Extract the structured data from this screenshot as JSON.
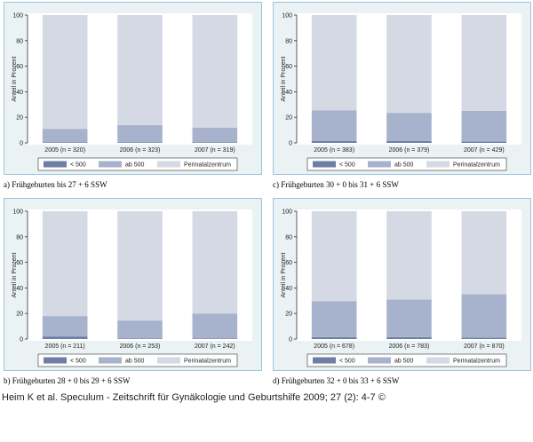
{
  "legend_labels": [
    "< 500",
    "ab 500",
    "Perinatalzentrum"
  ],
  "colors": {
    "lt500": "#6f7ea4",
    "ab500": "#a7b2cc",
    "perinatal": "#d5d9e4"
  },
  "source_text": "Heim K et al. Speculum - Zeitschrift für Gynäkologie und Geburtshilfe 2009; 27 (2): 4-7 ©",
  "chart_data": [
    {
      "type": "bar",
      "stacked": true,
      "caption": "a) Frühgeburten bis 27 + 6 SSW",
      "ylabel": "Anteil in Prozent",
      "ylim": [
        0,
        100
      ],
      "yticks": [
        "0",
        "20",
        "40",
        "60",
        "80",
        "100"
      ],
      "categories": [
        "2005 (n = 320)",
        "2006 (n = 323)",
        "2007 (n = 319)"
      ],
      "series": [
        {
          "name": "< 500",
          "values": [
            0.5,
            0.5,
            0.5
          ]
        },
        {
          "name": "ab 500",
          "values": [
            10.5,
            13.5,
            11.5
          ]
        },
        {
          "name": "Perinatalzentrum",
          "values": [
            89,
            86,
            88
          ]
        }
      ],
      "legend": "bottom"
    },
    {
      "type": "bar",
      "stacked": true,
      "caption": "c) Frühgeburten 30 + 0 bis 31 + 6 SSW",
      "ylabel": "Anteil in Prozent",
      "ylim": [
        0,
        100
      ],
      "yticks": [
        "0",
        "20",
        "40",
        "60",
        "80",
        "100"
      ],
      "categories": [
        "2005 (n = 383)",
        "2006 (n = 379)",
        "2007 (n = 429)"
      ],
      "series": [
        {
          "name": "< 500",
          "values": [
            1.5,
            1.5,
            1
          ]
        },
        {
          "name": "ab 500",
          "values": [
            24,
            22,
            24
          ]
        },
        {
          "name": "Perinatalzentrum",
          "values": [
            74.5,
            76.5,
            75
          ]
        }
      ],
      "legend": "bottom"
    },
    {
      "type": "bar",
      "stacked": true,
      "caption": "b) Frühgeburten 28 + 0 bis 29 + 6 SSW",
      "ylabel": "Anteil in Prozent",
      "ylim": [
        0,
        100
      ],
      "yticks": [
        "0",
        "20",
        "40",
        "60",
        "80",
        "100"
      ],
      "categories": [
        "2005 (n = 211)",
        "2006 (n = 253)",
        "2007 (n = 242)"
      ],
      "series": [
        {
          "name": "< 500",
          "values": [
            2,
            0.5,
            0.5
          ]
        },
        {
          "name": "ab 500",
          "values": [
            16,
            14,
            19.5
          ]
        },
        {
          "name": "Perinatalzentrum",
          "values": [
            82,
            85.5,
            80
          ]
        }
      ],
      "legend": "bottom"
    },
    {
      "type": "bar",
      "stacked": true,
      "caption": "d) Frühgeburten 32 + 0 bis 33 + 6 SSW",
      "ylabel": "Anteil in Prozent",
      "ylim": [
        0,
        100
      ],
      "yticks": [
        "0",
        "20",
        "40",
        "60",
        "80",
        "100"
      ],
      "categories": [
        "2005 (n = 678)",
        "2006 (n = 783)",
        "2007 (n = 870)"
      ],
      "series": [
        {
          "name": "< 500",
          "values": [
            1.5,
            1.5,
            1
          ]
        },
        {
          "name": "ab 500",
          "values": [
            28,
            29.5,
            34
          ]
        },
        {
          "name": "Perinatalzentrum",
          "values": [
            70.5,
            69,
            65
          ]
        }
      ],
      "legend": "bottom"
    }
  ]
}
